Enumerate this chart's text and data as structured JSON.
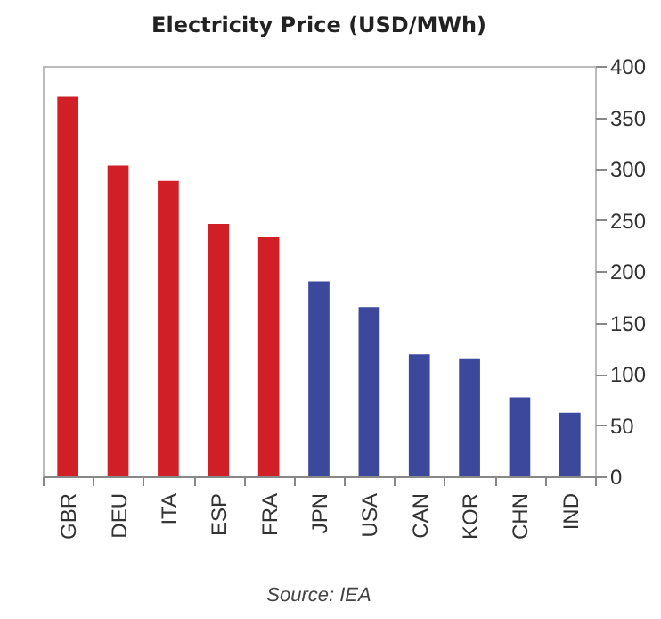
{
  "chart_data": {
    "type": "bar",
    "title": "Electricity Price (USD/MWh)",
    "categories": [
      "GBR",
      "DEU",
      "ITA",
      "ESP",
      "FRA",
      "JPN",
      "USA",
      "CAN",
      "KOR",
      "CHN",
      "IND"
    ],
    "values": [
      370,
      303,
      288,
      246,
      233,
      190,
      165,
      119,
      115,
      77,
      62
    ],
    "colors": [
      "#d01f27",
      "#d01f27",
      "#d01f27",
      "#d01f27",
      "#d01f27",
      "#3b489c",
      "#3b489c",
      "#3b489c",
      "#3b489c",
      "#3b489c",
      "#3b489c"
    ],
    "ylim": [
      0,
      400
    ],
    "yticks": [
      0,
      50,
      100,
      150,
      200,
      250,
      300,
      350,
      400
    ],
    "grid": false,
    "legend": false,
    "annotations": [
      "Source: IEA"
    ]
  }
}
